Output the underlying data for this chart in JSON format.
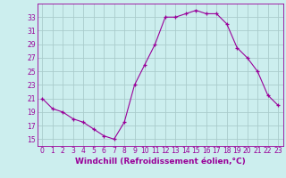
{
  "hours": [
    0,
    1,
    2,
    3,
    4,
    5,
    6,
    7,
    8,
    9,
    10,
    11,
    12,
    13,
    14,
    15,
    16,
    17,
    18,
    19,
    20,
    21,
    22,
    23
  ],
  "values": [
    21,
    19.5,
    19,
    18,
    17.5,
    16.5,
    15.5,
    15,
    17.5,
    23,
    26,
    29,
    33,
    33,
    33.5,
    34,
    33.5,
    33.5,
    32,
    28.5,
    27,
    25,
    21.5,
    20
  ],
  "line_color": "#990099",
  "marker": "+",
  "bg_color": "#cceeee",
  "grid_color": "#aacccc",
  "axis_color": "#990099",
  "title": "Windchill (Refroidissement éolien,°C)",
  "xlim": [
    -0.5,
    23.5
  ],
  "ylim": [
    14,
    35
  ],
  "yticks": [
    15,
    17,
    19,
    21,
    23,
    25,
    27,
    29,
    31,
    33
  ],
  "xticks": [
    0,
    1,
    2,
    3,
    4,
    5,
    6,
    7,
    8,
    9,
    10,
    11,
    12,
    13,
    14,
    15,
    16,
    17,
    18,
    19,
    20,
    21,
    22,
    23
  ],
  "tick_fontsize": 5.5,
  "xlabel_fontsize": 6.5
}
